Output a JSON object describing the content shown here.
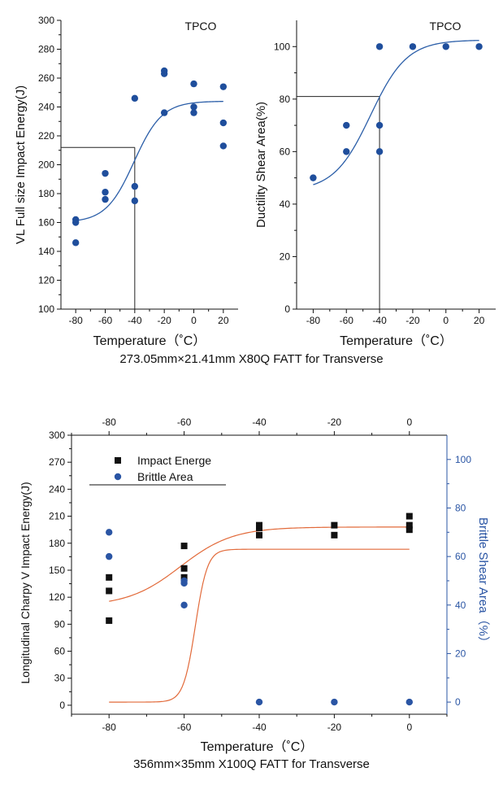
{
  "captions": {
    "top": "273.05mm×21.41mm X80Q FATT for Transverse",
    "bottom": "356mm×35mm X100Q FATT for Transverse"
  },
  "chart_data": [
    {
      "type": "scatter",
      "title": "TPCO",
      "xlabel": "Temperature（˚C）",
      "ylabel": "VL Full size Impact Energy(J)",
      "xlim": [
        -90,
        30
      ],
      "ylim": [
        100,
        300
      ],
      "xticks": [
        -80,
        -60,
        -40,
        -20,
        0,
        20
      ],
      "yticks": [
        100,
        120,
        140,
        160,
        180,
        200,
        220,
        240,
        260,
        280,
        300
      ],
      "marker_color": "#1f4e9c",
      "fit_color": "#2b5ea8",
      "points": [
        [
          -80,
          146
        ],
        [
          -80,
          160
        ],
        [
          -80,
          162
        ],
        [
          -60,
          176
        ],
        [
          -60,
          181
        ],
        [
          -60,
          194
        ],
        [
          -40,
          175
        ],
        [
          -40,
          185
        ],
        [
          -40,
          246
        ],
        [
          -20,
          236
        ],
        [
          -20,
          263
        ],
        [
          -20,
          265
        ],
        [
          0,
          236
        ],
        [
          0,
          240
        ],
        [
          0,
          256
        ],
        [
          20,
          213
        ],
        [
          20,
          229
        ],
        [
          20,
          254
        ]
      ],
      "fit": {
        "kind": "sigmoid",
        "lower": 160,
        "upper": 244,
        "mid": -40.5,
        "scale": 9.5
      },
      "reference": {
        "x": -40,
        "y": 212
      }
    },
    {
      "type": "scatter",
      "title": "TPCO",
      "xlabel": "Temperature（˚C）",
      "ylabel": "Ductility Shear Area(%)",
      "xlim": [
        -90,
        30
      ],
      "ylim": [
        0,
        110
      ],
      "xticks": [
        -80,
        -60,
        -40,
        -20,
        0,
        20
      ],
      "yticks": [
        0,
        20,
        40,
        60,
        80,
        100
      ],
      "marker_color": "#1f4e9c",
      "fit_color": "#2b5ea8",
      "points": [
        [
          -80,
          50
        ],
        [
          -60,
          60
        ],
        [
          -60,
          70
        ],
        [
          -40,
          60
        ],
        [
          -40,
          70
        ],
        [
          -40,
          100
        ],
        [
          -20,
          100
        ],
        [
          0,
          100
        ],
        [
          20,
          100
        ]
      ],
      "fit": {
        "kind": "sigmoid",
        "lower": 45,
        "upper": 102.5,
        "mid": -45.5,
        "scale": 11
      },
      "reference": {
        "x": -40,
        "y": 81
      }
    },
    {
      "type": "scatter",
      "title": "",
      "xlabel": "Temperature（˚C）",
      "ylabel": "Longitudinal Charpy V Impact Energy(J)",
      "y2label": "Brittle Shear Area（%）",
      "xlim": [
        -90,
        10
      ],
      "ylim": [
        -10,
        300
      ],
      "y2lim": [
        -5,
        110
      ],
      "xticks": [
        -80,
        -60,
        -40,
        -20,
        0
      ],
      "yticks": [
        0,
        30,
        60,
        90,
        120,
        150,
        180,
        210,
        240,
        270,
        300
      ],
      "y2ticks": [
        0,
        20,
        40,
        60,
        80,
        100
      ],
      "legend": {
        "position": "top-left",
        "entries": [
          "Impact Energe",
          "Brittle Area"
        ]
      },
      "axis2_color": "#2a55a4",
      "fit_color": "#e26a3a",
      "series": [
        {
          "name": "Impact Energe",
          "marker": "square",
          "color": "#111111",
          "points": [
            [
              -80,
              94
            ],
            [
              -80,
              127
            ],
            [
              -80,
              142
            ],
            [
              -60,
              142
            ],
            [
              -60,
              152
            ],
            [
              -60,
              177
            ],
            [
              -40,
              189
            ],
            [
              -40,
              197
            ],
            [
              -40,
              200
            ],
            [
              -20,
              189
            ],
            [
              -20,
              200
            ],
            [
              0,
              195
            ],
            [
              0,
              200
            ],
            [
              0,
              210
            ]
          ],
          "fit": {
            "kind": "sigmoid",
            "lower": 110,
            "upper": 198,
            "mid": -61,
            "scale": 7
          }
        },
        {
          "name": "Brittle Area",
          "marker": "circle",
          "color": "#2a55a4",
          "axis": "right",
          "points": [
            [
              -80,
              60
            ],
            [
              -80,
              70
            ],
            [
              -60,
              40
            ],
            [
              -60,
              49
            ],
            [
              -60,
              50
            ],
            [
              -40,
              0
            ],
            [
              -20,
              0
            ],
            [
              0,
              0
            ]
          ],
          "fit": {
            "kind": "sigmoid",
            "lower": 0,
            "upper": 63,
            "mid": -57,
            "scale": 1.6
          }
        }
      ]
    }
  ]
}
